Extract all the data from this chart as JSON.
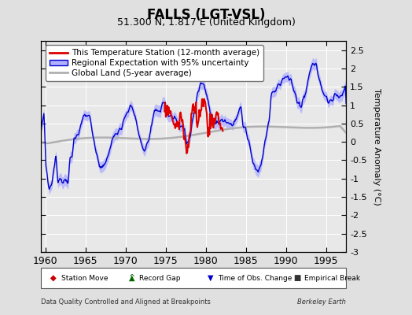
{
  "title": "FALLS (LGT-VSL)",
  "subtitle": "51.300 N, 1.817 E (United Kingdom)",
  "ylabel": "Temperature Anomaly (°C)",
  "xlabel_left": "Data Quality Controlled and Aligned at Breakpoints",
  "xlabel_right": "Berkeley Earth",
  "xlim": [
    1959.5,
    1997.5
  ],
  "ylim": [
    -3.0,
    2.75
  ],
  "yticks": [
    -3,
    -2.5,
    -2,
    -1.5,
    -1,
    -0.5,
    0,
    0.5,
    1,
    1.5,
    2,
    2.5
  ],
  "xticks": [
    1960,
    1965,
    1970,
    1975,
    1980,
    1985,
    1990,
    1995
  ],
  "bg_color": "#e0e0e0",
  "plot_bg_color": "#e8e8e8",
  "legend_entries": [
    "This Temperature Station (12-month average)",
    "Regional Expectation with 95% uncertainty",
    "Global Land (5-year average)"
  ],
  "station_color": "#dd0000",
  "regional_color": "#0000cc",
  "regional_uncertainty_color": "#b0b0ff",
  "global_color": "#b0b0b0",
  "bottom_legend": [
    {
      "marker": "D",
      "color": "#cc0000",
      "label": "Station Move"
    },
    {
      "marker": "^",
      "color": "#006600",
      "label": "Record Gap"
    },
    {
      "marker": "v",
      "color": "#0000cc",
      "label": "Time of Obs. Change"
    },
    {
      "marker": "s",
      "color": "#333333",
      "label": "Empirical Break"
    }
  ]
}
